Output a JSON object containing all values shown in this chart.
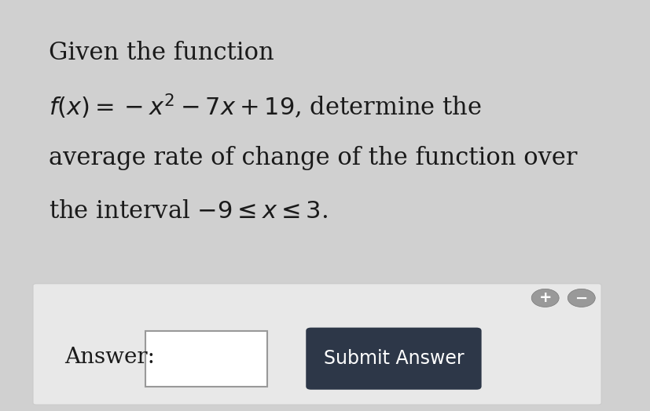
{
  "outer_bg": "#d0d0d0",
  "white_panel_bg": "#ffffff",
  "gray_panel_bg": "#e8e8e8",
  "submit_bg": "#2d3748",
  "submit_text": "Submit Answer",
  "submit_text_color": "#ffffff",
  "answer_label": "Answer:",
  "text_color": "#1a1a1a",
  "input_bg": "#ffffff",
  "input_border": "#999999",
  "plus_minus_bg": "#999999",
  "line1": "Given the function",
  "line3": "average rate of change of the function over",
  "font_size_text": 22,
  "font_size_answer": 20,
  "font_size_submit": 17,
  "font_size_pm": 14
}
